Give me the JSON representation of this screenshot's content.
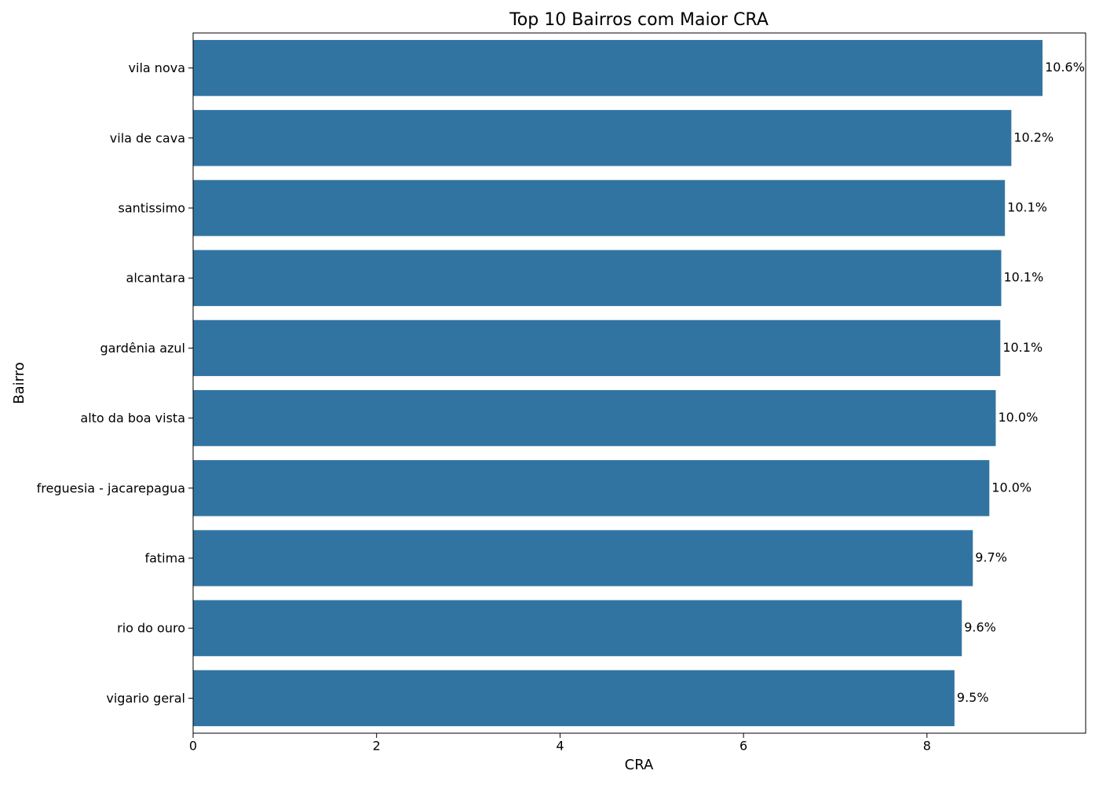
{
  "chart_data": {
    "type": "barh",
    "title": "Top 10 Bairros com Maior CRA",
    "xlabel": "CRA",
    "ylabel": "Bairro",
    "categories": [
      "vila nova",
      "vila de cava",
      "santissimo",
      "alcantara",
      "gardênia azul",
      "alto da boa vista",
      "freguesia - jacarepagua",
      "fatima",
      "rio do ouro",
      "vigario geral"
    ],
    "values": [
      9.26,
      8.92,
      8.85,
      8.81,
      8.8,
      8.75,
      8.68,
      8.5,
      8.38,
      8.3
    ],
    "bar_annotations": [
      "10.6%",
      "10.2%",
      "10.1%",
      "10.1%",
      "10.1%",
      "10.0%",
      "10.0%",
      "9.7%",
      "9.6%",
      "9.5%"
    ],
    "color": "#3274a1",
    "xlim": [
      0,
      9.73
    ],
    "xticks": [
      0,
      2,
      4,
      6,
      8
    ],
    "grid": false
  }
}
